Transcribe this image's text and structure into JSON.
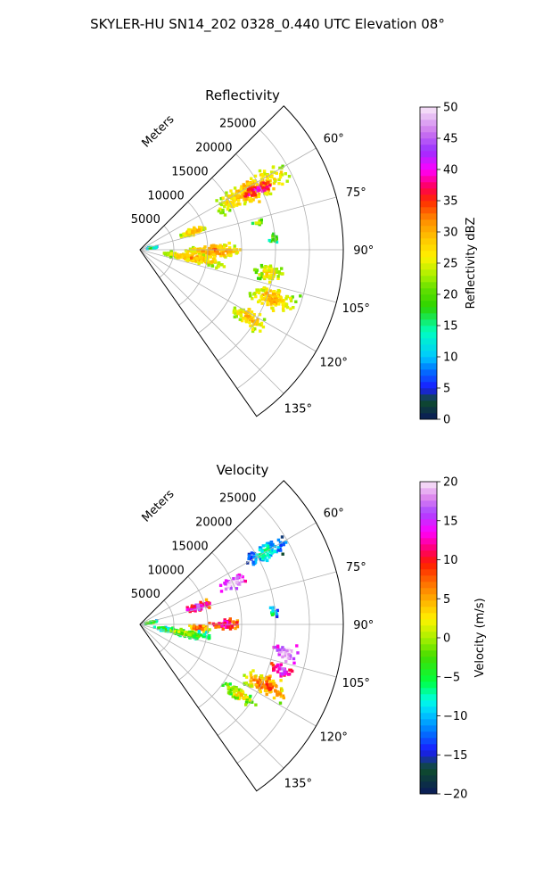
{
  "suptitle": "SKYLER-HU  SN14_202  0328_0.440 UTC Elevation 08°",
  "chart_data": [
    {
      "type": "polar_sector",
      "title": "Reflectivity",
      "radial_label": "Meters",
      "radial_ticks": [
        5000,
        10000,
        15000,
        20000,
        25000
      ],
      "radial_tick_labels": [
        "5000",
        "10000",
        "15000",
        "20000",
        "25000"
      ],
      "r_max": 30000,
      "theta_range_deg": [
        45,
        145
      ],
      "angle_ticks_deg": [
        60,
        75,
        90,
        105,
        120,
        135
      ],
      "angle_tick_labels": [
        "60°",
        "75°",
        "90°",
        "105°",
        "120°",
        "135°"
      ],
      "grid": true,
      "colorbar": {
        "label": "Reflectivity dBZ",
        "min": 0,
        "max": 50,
        "ticks": [
          0,
          5,
          10,
          15,
          20,
          25,
          30,
          35,
          40,
          45,
          50
        ],
        "tick_labels": [
          "0",
          "5",
          "10",
          "15",
          "20",
          "25",
          "30",
          "35",
          "40",
          "45",
          "50"
        ]
      },
      "echoes": [
        {
          "az": 62,
          "r0": 12500,
          "r1": 25000,
          "w": 9,
          "value": 25
        },
        {
          "az": 63,
          "r0": 17000,
          "r1": 22000,
          "w": 4,
          "value": 34
        },
        {
          "az": 71,
          "r0": 6000,
          "r1": 10500,
          "w": 6,
          "value": 24
        },
        {
          "az": 77,
          "r0": 17000,
          "r1": 19000,
          "w": 2,
          "value": 18
        },
        {
          "az": 85,
          "r0": 19000,
          "r1": 20500,
          "w": 4,
          "value": 16
        },
        {
          "az": 91,
          "r0": 6500,
          "r1": 15500,
          "w": 7,
          "value": 26
        },
        {
          "az": 99,
          "r0": 3000,
          "r1": 13000,
          "w": 8,
          "value": 24
        },
        {
          "az": 100,
          "r0": 17000,
          "r1": 22000,
          "w": 6,
          "value": 22
        },
        {
          "az": 110,
          "r0": 17000,
          "r1": 25000,
          "w": 7,
          "value": 24
        },
        {
          "az": 122,
          "r0": 16000,
          "r1": 22000,
          "w": 6,
          "value": 24
        },
        {
          "az": 80,
          "r0": 700,
          "r1": 2600,
          "w": 6,
          "value": 10
        }
      ]
    },
    {
      "type": "polar_sector",
      "title": "Velocity",
      "radial_label": "Meters",
      "radial_ticks": [
        5000,
        10000,
        15000,
        20000,
        25000
      ],
      "radial_tick_labels": [
        "5000",
        "10000",
        "15000",
        "20000",
        "25000"
      ],
      "r_max": 30000,
      "theta_range_deg": [
        45,
        145
      ],
      "angle_ticks_deg": [
        60,
        75,
        90,
        105,
        120,
        135
      ],
      "angle_tick_labels": [
        "60°",
        "75°",
        "90°",
        "105°",
        "120°",
        "135°"
      ],
      "grid": true,
      "colorbar": {
        "label": "Velocity (m/s)",
        "min": -20,
        "max": 20,
        "ticks": [
          -20,
          -15,
          -10,
          -5,
          0,
          5,
          10,
          15,
          20
        ],
        "tick_labels": [
          "−20",
          "−15",
          "−10",
          "−5",
          "0",
          "5",
          "10",
          "15",
          "20"
        ]
      },
      "echoes": [
        {
          "az": 60,
          "r0": 18000,
          "r1": 25000,
          "w": 6,
          "value": -13
        },
        {
          "az": 66,
          "r0": 12500,
          "r1": 17500,
          "w": 5,
          "value": 15
        },
        {
          "az": 73,
          "r0": 7000,
          "r1": 11000,
          "w": 6,
          "value": 10
        },
        {
          "az": 85,
          "r0": 19000,
          "r1": 20500,
          "w": 4,
          "value": -11
        },
        {
          "az": 90,
          "r0": 10000,
          "r1": 15500,
          "w": 5,
          "value": 7
        },
        {
          "az": 93,
          "r0": 7000,
          "r1": 10500,
          "w": 5,
          "value": 3
        },
        {
          "az": 101,
          "r0": 2000,
          "r1": 11000,
          "w": 8,
          "value": -6
        },
        {
          "az": 101,
          "r0": 20000,
          "r1": 24000,
          "w": 5,
          "value": 15
        },
        {
          "az": 108,
          "r0": 20000,
          "r1": 24000,
          "w": 4,
          "value": 10
        },
        {
          "az": 116,
          "r0": 17000,
          "r1": 24500,
          "w": 7,
          "value": 2
        },
        {
          "az": 125,
          "r0": 15000,
          "r1": 21000,
          "w": 5,
          "value": -3
        },
        {
          "az": 80,
          "r0": 700,
          "r1": 2600,
          "w": 6,
          "value": -6
        }
      ]
    }
  ]
}
